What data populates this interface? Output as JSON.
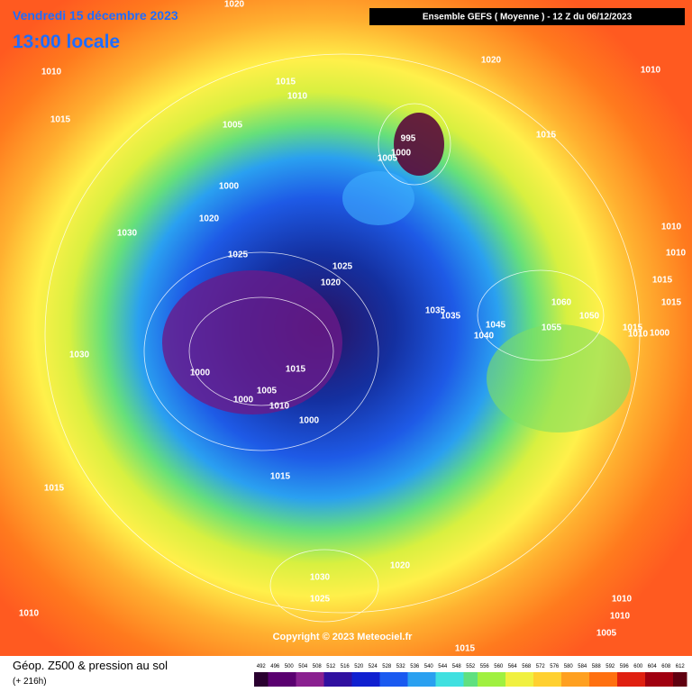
{
  "header": {
    "date": "Vendredi 15 décembre 2023",
    "time": "13:00 locale",
    "model": "Ensemble GEFS  ( Moyenne )  -  12 Z du 06/12/2023"
  },
  "isobars": [
    "1020",
    "1020",
    "1010",
    "1010",
    "1015",
    "1010",
    "1015",
    "1005",
    "995",
    "1005",
    "1000",
    "1015",
    "1000",
    "1020",
    "1030",
    "1010",
    "1010",
    "1025",
    "1025",
    "1020",
    "1015",
    "1015",
    "1060",
    "1050",
    "1035",
    "1035",
    "1045",
    "1040",
    "1055",
    "1015",
    "1010",
    "1000",
    "1030",
    "1015",
    "1000",
    "1005",
    "1000",
    "1010",
    "1000",
    "1015",
    "1015",
    "1030",
    "1020",
    "1025",
    "1010",
    "1010",
    "1010",
    "1005",
    "1015"
  ],
  "copyright": "Copyright © 2023 Meteociel.fr",
  "footer": {
    "title": "Géop. Z500 & pression au sol",
    "lead": "(+ 216h)"
  },
  "legend": [
    492,
    496,
    500,
    504,
    508,
    512,
    516,
    520,
    524,
    528,
    532,
    536,
    540,
    544,
    548,
    552,
    556,
    560,
    564,
    568,
    572,
    576,
    580,
    584,
    588,
    592,
    596,
    600,
    604,
    608,
    612
  ]
}
